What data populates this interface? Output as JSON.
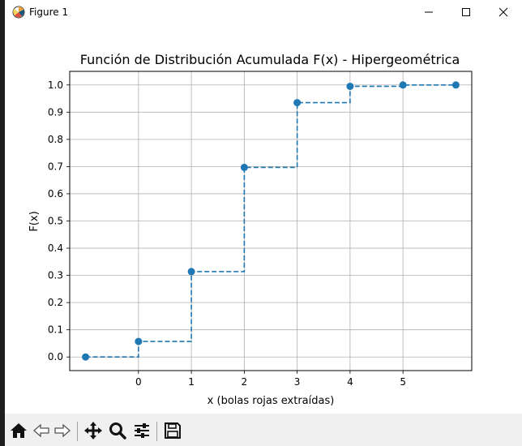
{
  "window": {
    "title": "Figure 1",
    "buttons": {
      "minimize": "minimize-icon",
      "maximize": "maximize-icon",
      "close": "close-icon"
    }
  },
  "toolbar": {
    "icons": [
      "home-icon",
      "back-icon",
      "forward-icon",
      "pan-icon",
      "zoom-icon",
      "configure-subplots-icon",
      "save-icon"
    ]
  },
  "colors": {
    "line": "#1f77b4",
    "grid": "#b0b0b0"
  },
  "chart_data": {
    "type": "line",
    "title": "Función de Distribución Acumulada F(x) - Hipergeométrica",
    "xlabel": "x (bolas rojas extraídas)",
    "ylabel": "F(x)",
    "x": [
      -1,
      0,
      1,
      2,
      3,
      4,
      5,
      6
    ],
    "y": [
      0.0,
      0.057,
      0.314,
      0.697,
      0.935,
      0.995,
      1.0,
      1.0
    ],
    "xticks": [
      "0",
      "1",
      "2",
      "3",
      "4",
      "5"
    ],
    "xtick_values": [
      0,
      1,
      2,
      3,
      4,
      5
    ],
    "yticks": [
      "0.0",
      "0.1",
      "0.2",
      "0.3",
      "0.4",
      "0.5",
      "0.6",
      "0.7",
      "0.8",
      "0.9",
      "1.0"
    ],
    "ytick_values": [
      0.0,
      0.1,
      0.2,
      0.3,
      0.4,
      0.5,
      0.6,
      0.7,
      0.8,
      0.9,
      1.0
    ],
    "xlim": [
      -1.3,
      6.3
    ],
    "ylim": [
      -0.05,
      1.05
    ],
    "grid": true,
    "line_style": "dashed step (post)",
    "markers": "circle"
  }
}
